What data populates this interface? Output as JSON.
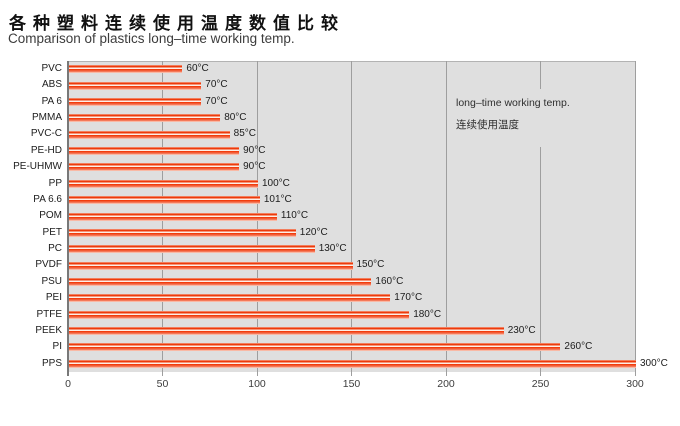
{
  "header": {
    "title_zh": "各种塑料连续使用温度数值比较",
    "subtitle_en": "Comparison of plastics long–time working temp."
  },
  "legend": {
    "line1_en": "long–time working temp.",
    "line2_zh": "连续使用温度"
  },
  "chart_data": {
    "type": "bar",
    "orientation": "horizontal",
    "title": "各种塑料连续使用温度数值比较 / Comparison of plastics long–time working temp.",
    "categories": [
      "PVC",
      "ABS",
      "PA 6",
      "PMMA",
      "PVC-C",
      "PE-HD",
      "PE-UHMW",
      "PP",
      "PA 6.6",
      "POM",
      "PET",
      "PC",
      "PVDF",
      "PSU",
      "PEI",
      "PTFE",
      "PEEK",
      "PI",
      "PPS"
    ],
    "values": [
      60,
      70,
      70,
      80,
      85,
      90,
      90,
      100,
      101,
      110,
      120,
      130,
      150,
      160,
      170,
      180,
      230,
      260,
      300
    ],
    "unit": "°C",
    "value_labels": [
      "60°C",
      "70°C",
      "70°C",
      "80°C",
      "85°C",
      "90°C",
      "90°C",
      "100°C",
      "101°C",
      "110°C",
      "120°C",
      "130°C",
      "150°C",
      "160°C",
      "170°C",
      "180°C",
      "230°C",
      "260°C",
      "300°C"
    ],
    "xlabel": "",
    "ylabel": "",
    "xlim": [
      0,
      300
    ],
    "x_ticks": [
      0,
      50,
      100,
      150,
      200,
      250,
      300
    ],
    "grid": true,
    "legend_position": "top-right-inside",
    "colors": {
      "bar_red": "#ed3a0b",
      "bar_salmon": "#f4795a",
      "plot_bg": "#dfdfdf",
      "gridline": "#9e9e9e",
      "text": "#1c1c1c"
    }
  }
}
